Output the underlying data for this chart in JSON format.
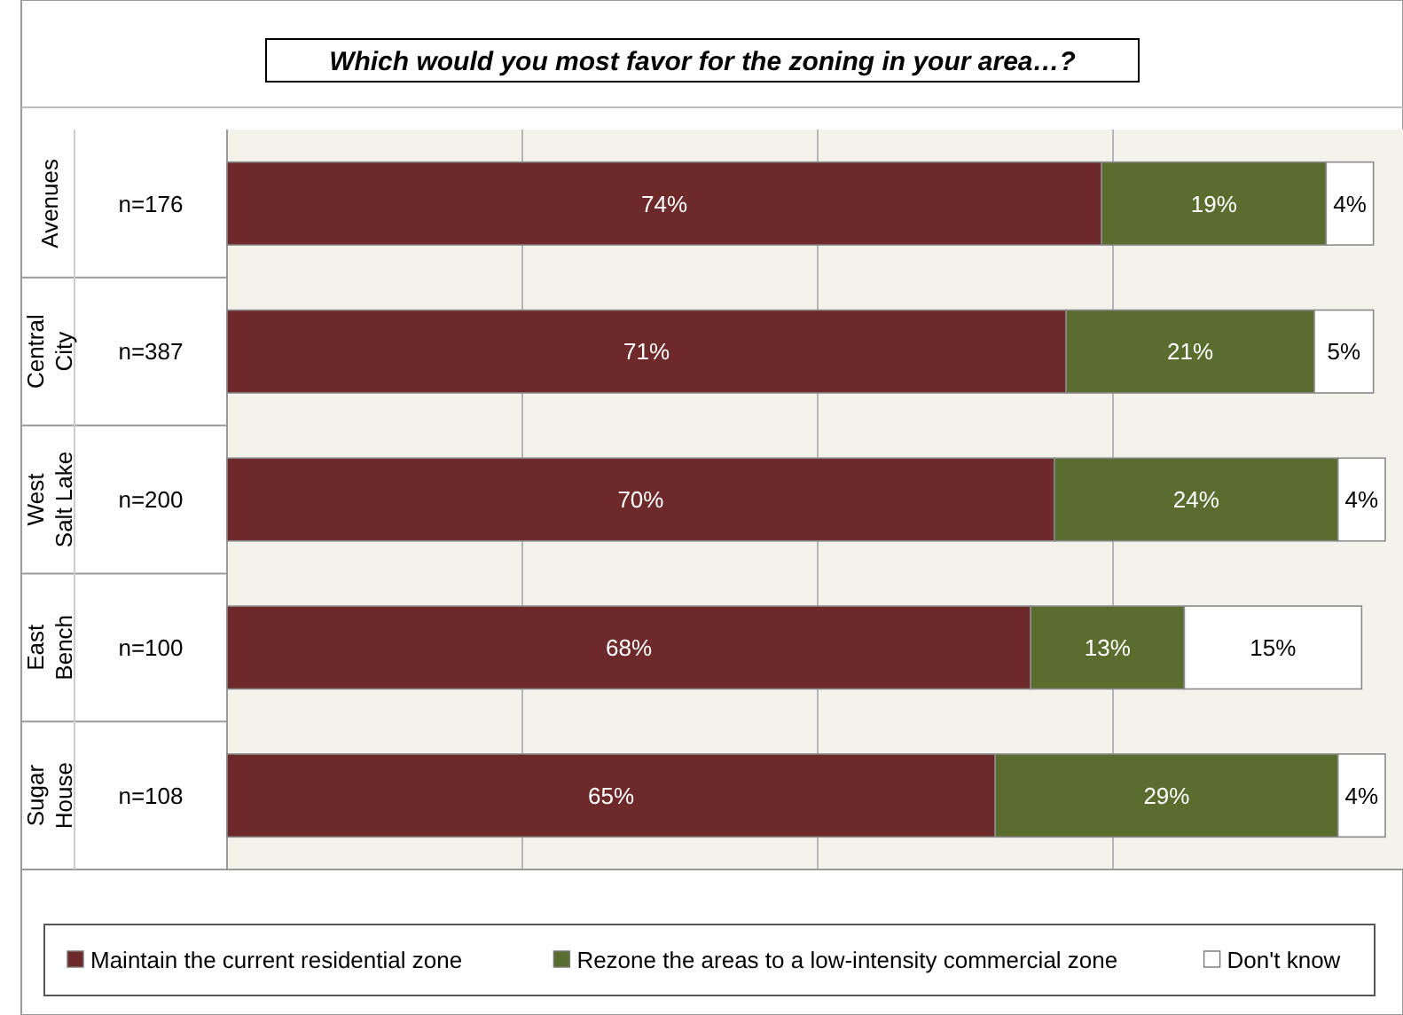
{
  "chart_data": {
    "type": "bar",
    "orientation": "horizontal",
    "stacked": true,
    "title": "Which would you most favor for the zoning in your area…?",
    "categories": [
      "Avenues",
      "Central City",
      "West Salt Lake",
      "East Bench",
      "Sugar House"
    ],
    "series": [
      {
        "name": "Maintain the current residential zone",
        "color": "#6e2a2a",
        "values": [
          74,
          71,
          70,
          68,
          65
        ],
        "value_labels": [
          "74%",
          "71%",
          "70%",
          "68%",
          "65%"
        ]
      },
      {
        "name": "Rezone the areas to a low-intensity commercial zone",
        "color": "#5a6d2f",
        "values": [
          19,
          21,
          24,
          13,
          29
        ],
        "value_labels": [
          "19%",
          "21%",
          "24%",
          "13%",
          "29%"
        ]
      },
      {
        "name": "Don't know",
        "color": "#ffffff",
        "values": [
          4,
          5,
          4,
          15,
          4
        ],
        "value_labels": [
          "4%",
          "5%",
          "4%",
          "15%",
          "4%"
        ]
      }
    ],
    "tick_labels": "y",
    "grid": "x",
    "legend": "bottom",
    "annotations": [
      "n=176",
      "n=387",
      "n=200",
      "n=100",
      "n=108"
    ]
  }
}
